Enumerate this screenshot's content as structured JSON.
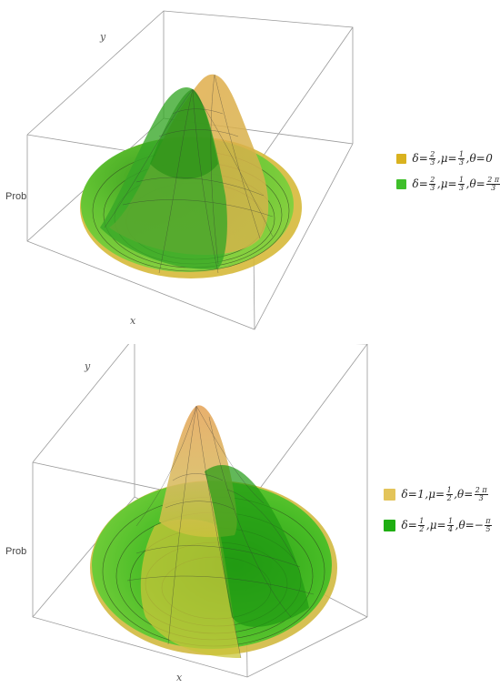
{
  "plots": [
    {
      "axis_labels": {
        "x": "x",
        "y": "y",
        "z": "Prob"
      },
      "legend": [
        {
          "color": "#d9b21f",
          "parts": {
            "delta_sym": "δ=",
            "delta_num": "2",
            "delta_den": "3",
            "mu_sym": ",μ=",
            "mu_num": "1",
            "mu_den": "3",
            "theta_sym": ",θ=",
            "theta_val": "0"
          }
        },
        {
          "color": "#3fbf2a",
          "parts": {
            "delta_sym": "δ=",
            "delta_num": "2",
            "delta_den": "3",
            "mu_sym": ",μ=",
            "mu_num": "1",
            "mu_den": "3",
            "theta_sym": ",θ=",
            "theta_num": "2 π",
            "theta_den": "3"
          }
        }
      ]
    },
    {
      "axis_labels": {
        "x": "x",
        "y": "y",
        "z": "Prob"
      },
      "legend": [
        {
          "color": "#e3c45a",
          "parts": {
            "delta_sym": "δ=",
            "delta_val": "1",
            "mu_sym": ",μ=",
            "mu_num": "1",
            "mu_den": "2",
            "theta_sym": ",θ=",
            "theta_num": "2 π",
            "theta_den": "3"
          }
        },
        {
          "color": "#1fae12",
          "parts": {
            "delta_sym": "δ=",
            "delta_num": "1",
            "delta_den": "2",
            "mu_sym": ",μ=",
            "mu_num": "1",
            "mu_den": "4",
            "theta_sym": ",θ=−",
            "theta_num": "π",
            "theta_den": "5"
          }
        }
      ]
    }
  ]
}
